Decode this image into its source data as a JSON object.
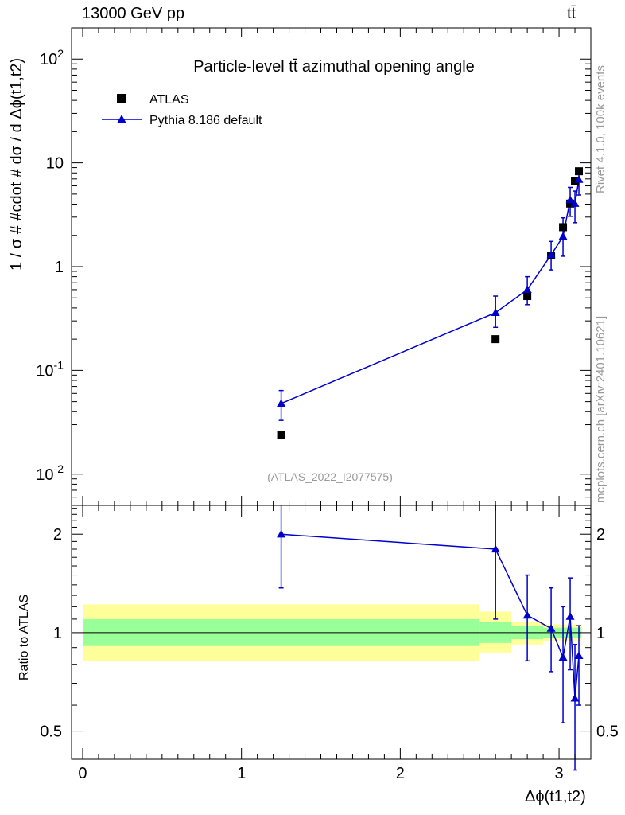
{
  "header": {
    "energy_label": "13000 GeV pp",
    "process_label": "tt̄"
  },
  "side_labels": {
    "rivet_info": "Rivet 4.1.0,  100k events",
    "site_info": "mcplots.cern.ch [arXiv:2401.10621]"
  },
  "colors": {
    "mc": "#0000cc",
    "data": "#000000",
    "band_inner": "#99ff99",
    "band_outer": "#ffff99",
    "watermark": "#999999"
  },
  "chart_data": [
    {
      "type": "scatter",
      "title": "Particle-level tt̄ azimuthal opening angle",
      "analysis_tag": "(ATLAS_2022_I2077575)",
      "xlabel": "Δϕ(t1,t2)",
      "ylabel": "1 / σ # #cdot # dσ / d Δϕ(t1,t2)",
      "yscale": "log",
      "ylim": [
        0.005,
        200
      ],
      "xlim": [
        -0.07,
        3.2
      ],
      "y_ticks": [
        "10^-2",
        "10^-1",
        "1",
        "10",
        "10^2"
      ],
      "legend": {
        "placement": "top-left",
        "entries": [
          "ATLAS",
          "Pythia 8.186 default"
        ]
      },
      "series": [
        {
          "name": "ATLAS",
          "marker": "square",
          "x": [
            1.25,
            2.6,
            2.8,
            2.95,
            3.025,
            3.07,
            3.1,
            3.125
          ],
          "y": [
            0.024,
            0.2,
            0.52,
            1.28,
            2.4,
            4.05,
            6.7,
            8.3
          ]
        },
        {
          "name": "Pythia 8.186 default",
          "marker": "triangle",
          "x": [
            1.25,
            2.6,
            2.8,
            2.95,
            3.025,
            3.07,
            3.1,
            3.125
          ],
          "y": [
            0.048,
            0.36,
            0.6,
            1.3,
            1.95,
            4.4,
            4.05,
            6.9
          ],
          "yerr_low": [
            0.033,
            0.26,
            0.43,
            0.93,
            1.26,
            3.05,
            2.65,
            4.9
          ],
          "yerr_high": [
            0.064,
            0.52,
            0.8,
            1.75,
            2.95,
            5.8,
            5.35,
            8.1
          ]
        }
      ]
    },
    {
      "type": "line",
      "title": "",
      "ylabel": "Ratio to ATLAS",
      "xlabel": "Δϕ(t1,t2)",
      "yscale": "log",
      "ylim": [
        0.41,
        2.45
      ],
      "xlim": [
        -0.07,
        3.2
      ],
      "y_ticks": [
        "0.5",
        "1",
        "2"
      ],
      "x_ticks": [
        "0",
        "1",
        "2",
        "3"
      ],
      "reference_line": 1,
      "uncertainty_bands": [
        {
          "x_low": 0,
          "x_high": 2.5,
          "inner": [
            0.91,
            1.1
          ],
          "outer": [
            0.82,
            1.22
          ]
        },
        {
          "x_low": 2.5,
          "x_high": 2.7,
          "inner": [
            0.93,
            1.08
          ],
          "outer": [
            0.87,
            1.16
          ]
        },
        {
          "x_low": 2.7,
          "x_high": 2.9,
          "inner": [
            0.955,
            1.05
          ],
          "outer": [
            0.92,
            1.08
          ]
        },
        {
          "x_low": 2.9,
          "x_high": 3.0,
          "inner": [
            0.965,
            1.035
          ],
          "outer": [
            0.94,
            1.06
          ]
        },
        {
          "x_low": 3.0,
          "x_high": 3.05,
          "inner": [
            0.965,
            1.035
          ],
          "outer": [
            0.94,
            1.06
          ]
        },
        {
          "x_low": 3.05,
          "x_high": 3.09,
          "inner": [
            0.965,
            1.035
          ],
          "outer": [
            0.94,
            1.06
          ]
        },
        {
          "x_low": 3.09,
          "x_high": 3.11,
          "inner": [
            0.965,
            1.035
          ],
          "outer": [
            0.94,
            1.06
          ]
        },
        {
          "x_low": 3.11,
          "x_high": 3.14,
          "inner": [
            0.965,
            1.035
          ],
          "outer": [
            0.94,
            1.06
          ]
        }
      ],
      "series": [
        {
          "name": "Pythia 8.186 default / ATLAS",
          "marker": "triangle",
          "x": [
            1.25,
            2.6,
            2.8,
            2.95,
            3.025,
            3.07,
            3.1,
            3.125
          ],
          "y": [
            2.0,
            1.8,
            1.13,
            1.03,
            0.84,
            1.12,
            0.63,
            0.85
          ],
          "yerr_low": [
            1.37,
            1.1,
            0.82,
            0.76,
            0.53,
            0.77,
            0.38,
            0.6
          ],
          "yerr_high": [
            2.7,
            2.45,
            1.5,
            1.37,
            1.2,
            1.47,
            0.92,
            1.05
          ]
        }
      ]
    }
  ]
}
